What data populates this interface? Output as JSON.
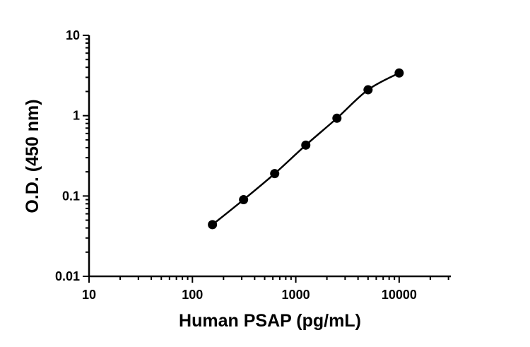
{
  "chart_data": {
    "type": "scatter",
    "xlabel": "Human PSAP (pg/mL)",
    "ylabel": "O.D. (450 nm)",
    "xscale": "log",
    "yscale": "log",
    "xlim": [
      10,
      31623
    ],
    "ylim": [
      0.01,
      10
    ],
    "x_ticks": [
      10,
      100,
      1000,
      10000
    ],
    "x_tick_labels": [
      "10",
      "100",
      "1000",
      "10000"
    ],
    "y_ticks": [
      0.01,
      0.1,
      1,
      10
    ],
    "y_tick_labels": [
      "0.01",
      "0.1",
      "1",
      "10"
    ],
    "grid": false,
    "fit_curve": true,
    "series": [
      {
        "x": [
          156.25,
          312.5,
          625,
          1250,
          2500,
          5000,
          10000
        ],
        "y": [
          0.044,
          0.09,
          0.19,
          0.43,
          0.93,
          2.1,
          3.4
        ]
      }
    ],
    "colors": {
      "points": "#000000",
      "curve": "#000000",
      "axes": "#000000"
    }
  }
}
